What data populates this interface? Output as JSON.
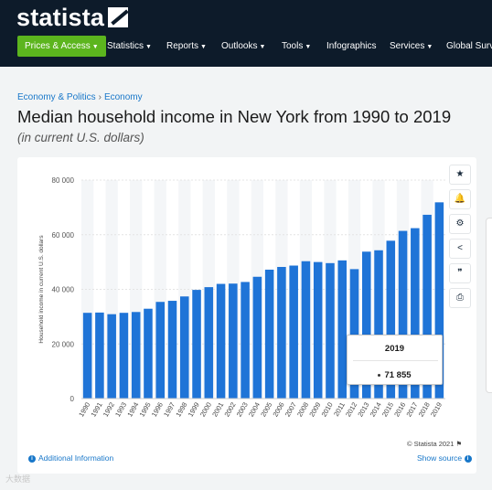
{
  "brand": {
    "name": "statista"
  },
  "nav": {
    "primary": "Prices & Access",
    "items": [
      "Statistics",
      "Reports",
      "Outlooks",
      "Tools",
      "Infographics",
      "Services",
      "Global Surve"
    ],
    "caret_items": [
      true,
      true,
      true,
      true,
      false,
      true,
      false
    ]
  },
  "breadcrumb": {
    "first": "Economy & Politics",
    "separator": "›",
    "second": "Economy"
  },
  "page": {
    "title": "Median household income in New York from 1990 to 2019",
    "subtitle": "(in current U.S. dollars)"
  },
  "toolbar": {
    "icons": [
      "star-icon",
      "bell-icon",
      "gear-icon",
      "share-icon",
      "quote-icon",
      "print-icon"
    ],
    "glyphs": [
      "★",
      "🔔",
      "⚙",
      "<",
      "❞",
      "⎙"
    ]
  },
  "chart_data": {
    "type": "bar",
    "title": "",
    "xlabel": "",
    "ylabel": "Household income in current U.S. dollars",
    "ylim": [
      0,
      80000
    ],
    "yticks": [
      0,
      20000,
      40000,
      60000,
      80000
    ],
    "ytick_labels": [
      "0",
      "20 000",
      "40 000",
      "60 000",
      "80 000"
    ],
    "categories": [
      "1990",
      "1991",
      "1992",
      "1993",
      "1994",
      "1995",
      "1996",
      "1997",
      "1998",
      "1999",
      "2000",
      "2001",
      "2002",
      "2003",
      "2004",
      "2005",
      "2006",
      "2007",
      "2008",
      "2009",
      "2010",
      "2011",
      "2012",
      "2013",
      "2014",
      "2015",
      "2016",
      "2017",
      "2018",
      "2019"
    ],
    "values": [
      31400,
      31500,
      30900,
      31400,
      31700,
      32900,
      35400,
      35800,
      37400,
      39800,
      40800,
      42000,
      42100,
      42700,
      44600,
      47200,
      48200,
      48700,
      50300,
      50000,
      49600,
      50600,
      47400,
      53800,
      54300,
      57800,
      61400,
      62400,
      67300,
      71855
    ],
    "bar_color": "#1f74d7",
    "grid": true,
    "tooltip": {
      "category": "2019",
      "value": "71 855"
    }
  },
  "footer": {
    "credit": "© Statista 2021",
    "additional_info": "Additional Information",
    "show_source": "Show source"
  },
  "watermark": "大数据"
}
